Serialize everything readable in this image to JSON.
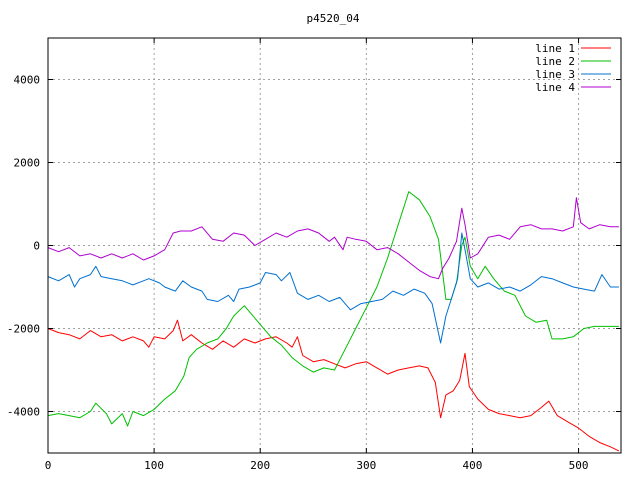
{
  "chart_data": {
    "type": "line",
    "title": "p4520_04",
    "xlim": [
      0,
      540
    ],
    "ylim": [
      -5000,
      5000
    ],
    "xticks": [
      0,
      100,
      200,
      300,
      400,
      500
    ],
    "yticks": [
      -4000,
      -2000,
      0,
      2000,
      4000
    ],
    "grid": true,
    "legend_position": "top-right",
    "series": [
      {
        "name": "line 1",
        "color": "#ff0000",
        "points": [
          [
            0,
            -2000
          ],
          [
            10,
            -2100
          ],
          [
            20,
            -2150
          ],
          [
            30,
            -2250
          ],
          [
            40,
            -2050
          ],
          [
            50,
            -2200
          ],
          [
            60,
            -2150
          ],
          [
            70,
            -2300
          ],
          [
            80,
            -2200
          ],
          [
            90,
            -2300
          ],
          [
            95,
            -2450
          ],
          [
            100,
            -2200
          ],
          [
            110,
            -2250
          ],
          [
            118,
            -2050
          ],
          [
            122,
            -1800
          ],
          [
            127,
            -2300
          ],
          [
            135,
            -2150
          ],
          [
            145,
            -2350
          ],
          [
            155,
            -2500
          ],
          [
            165,
            -2300
          ],
          [
            175,
            -2450
          ],
          [
            185,
            -2250
          ],
          [
            195,
            -2350
          ],
          [
            205,
            -2250
          ],
          [
            215,
            -2200
          ],
          [
            225,
            -2350
          ],
          [
            230,
            -2450
          ],
          [
            235,
            -2200
          ],
          [
            240,
            -2650
          ],
          [
            250,
            -2800
          ],
          [
            260,
            -2750
          ],
          [
            270,
            -2850
          ],
          [
            280,
            -2950
          ],
          [
            290,
            -2850
          ],
          [
            300,
            -2800
          ],
          [
            310,
            -2950
          ],
          [
            320,
            -3100
          ],
          [
            330,
            -3000
          ],
          [
            340,
            -2950
          ],
          [
            350,
            -2900
          ],
          [
            358,
            -2950
          ],
          [
            365,
            -3300
          ],
          [
            370,
            -4150
          ],
          [
            375,
            -3600
          ],
          [
            382,
            -3500
          ],
          [
            388,
            -3250
          ],
          [
            393,
            -2600
          ],
          [
            397,
            -3400
          ],
          [
            405,
            -3700
          ],
          [
            415,
            -3950
          ],
          [
            425,
            -4050
          ],
          [
            435,
            -4100
          ],
          [
            445,
            -4150
          ],
          [
            455,
            -4100
          ],
          [
            465,
            -3900
          ],
          [
            472,
            -3750
          ],
          [
            480,
            -4100
          ],
          [
            490,
            -4250
          ],
          [
            500,
            -4400
          ],
          [
            510,
            -4600
          ],
          [
            520,
            -4750
          ],
          [
            530,
            -4850
          ],
          [
            538,
            -4950
          ]
        ]
      },
      {
        "name": "line 2",
        "color": "#00c000",
        "points": [
          [
            0,
            -4100
          ],
          [
            10,
            -4050
          ],
          [
            20,
            -4100
          ],
          [
            30,
            -4150
          ],
          [
            40,
            -4000
          ],
          [
            45,
            -3800
          ],
          [
            55,
            -4050
          ],
          [
            60,
            -4300
          ],
          [
            70,
            -4050
          ],
          [
            75,
            -4350
          ],
          [
            80,
            -4000
          ],
          [
            90,
            -4100
          ],
          [
            100,
            -3950
          ],
          [
            110,
            -3700
          ],
          [
            120,
            -3500
          ],
          [
            128,
            -3150
          ],
          [
            133,
            -2700
          ],
          [
            140,
            -2500
          ],
          [
            150,
            -2350
          ],
          [
            160,
            -2250
          ],
          [
            168,
            -2000
          ],
          [
            175,
            -1700
          ],
          [
            185,
            -1450
          ],
          [
            190,
            -1600
          ],
          [
            200,
            -1900
          ],
          [
            210,
            -2200
          ],
          [
            220,
            -2400
          ],
          [
            230,
            -2700
          ],
          [
            240,
            -2900
          ],
          [
            250,
            -3050
          ],
          [
            260,
            -2950
          ],
          [
            270,
            -3000
          ],
          [
            280,
            -2500
          ],
          [
            290,
            -2000
          ],
          [
            300,
            -1500
          ],
          [
            310,
            -1000
          ],
          [
            320,
            -300
          ],
          [
            330,
            500
          ],
          [
            340,
            1300
          ],
          [
            350,
            1100
          ],
          [
            360,
            700
          ],
          [
            368,
            150
          ],
          [
            375,
            -1300
          ],
          [
            380,
            -1300
          ],
          [
            385,
            -900
          ],
          [
            390,
            0
          ],
          [
            393,
            200
          ],
          [
            398,
            -500
          ],
          [
            405,
            -800
          ],
          [
            412,
            -500
          ],
          [
            420,
            -800
          ],
          [
            430,
            -1100
          ],
          [
            440,
            -1200
          ],
          [
            450,
            -1700
          ],
          [
            460,
            -1850
          ],
          [
            470,
            -1800
          ],
          [
            475,
            -2250
          ],
          [
            485,
            -2250
          ],
          [
            495,
            -2200
          ],
          [
            505,
            -2000
          ],
          [
            515,
            -1950
          ],
          [
            525,
            -1950
          ],
          [
            538,
            -1950
          ]
        ]
      },
      {
        "name": "line 3",
        "color": "#0070d0",
        "points": [
          [
            0,
            -750
          ],
          [
            10,
            -850
          ],
          [
            20,
            -700
          ],
          [
            25,
            -1000
          ],
          [
            30,
            -800
          ],
          [
            40,
            -700
          ],
          [
            45,
            -500
          ],
          [
            50,
            -750
          ],
          [
            60,
            -800
          ],
          [
            70,
            -850
          ],
          [
            80,
            -950
          ],
          [
            90,
            -850
          ],
          [
            95,
            -800
          ],
          [
            105,
            -900
          ],
          [
            110,
            -1000
          ],
          [
            120,
            -1100
          ],
          [
            127,
            -850
          ],
          [
            135,
            -1000
          ],
          [
            145,
            -1100
          ],
          [
            150,
            -1300
          ],
          [
            160,
            -1350
          ],
          [
            170,
            -1200
          ],
          [
            175,
            -1350
          ],
          [
            180,
            -1050
          ],
          [
            190,
            -1000
          ],
          [
            200,
            -900
          ],
          [
            205,
            -650
          ],
          [
            215,
            -700
          ],
          [
            220,
            -850
          ],
          [
            228,
            -650
          ],
          [
            235,
            -1150
          ],
          [
            245,
            -1300
          ],
          [
            255,
            -1200
          ],
          [
            265,
            -1350
          ],
          [
            275,
            -1250
          ],
          [
            285,
            -1550
          ],
          [
            295,
            -1400
          ],
          [
            305,
            -1350
          ],
          [
            315,
            -1300
          ],
          [
            325,
            -1100
          ],
          [
            335,
            -1200
          ],
          [
            345,
            -1050
          ],
          [
            355,
            -1150
          ],
          [
            362,
            -1400
          ],
          [
            370,
            -2350
          ],
          [
            375,
            -1700
          ],
          [
            380,
            -1300
          ],
          [
            386,
            -800
          ],
          [
            390,
            300
          ],
          [
            393,
            -100
          ],
          [
            398,
            -800
          ],
          [
            405,
            -1000
          ],
          [
            415,
            -900
          ],
          [
            425,
            -1050
          ],
          [
            435,
            -1000
          ],
          [
            445,
            -1100
          ],
          [
            455,
            -950
          ],
          [
            465,
            -750
          ],
          [
            475,
            -800
          ],
          [
            485,
            -900
          ],
          [
            495,
            -1000
          ],
          [
            505,
            -1050
          ],
          [
            515,
            -1100
          ],
          [
            522,
            -700
          ],
          [
            530,
            -1000
          ],
          [
            538,
            -1000
          ]
        ]
      },
      {
        "name": "line 4",
        "color": "#b000d0",
        "points": [
          [
            0,
            -50
          ],
          [
            10,
            -150
          ],
          [
            20,
            -50
          ],
          [
            30,
            -250
          ],
          [
            40,
            -200
          ],
          [
            50,
            -300
          ],
          [
            60,
            -200
          ],
          [
            70,
            -300
          ],
          [
            80,
            -200
          ],
          [
            90,
            -350
          ],
          [
            100,
            -250
          ],
          [
            110,
            -100
          ],
          [
            118,
            300
          ],
          [
            125,
            350
          ],
          [
            135,
            350
          ],
          [
            145,
            450
          ],
          [
            155,
            150
          ],
          [
            165,
            100
          ],
          [
            175,
            300
          ],
          [
            185,
            250
          ],
          [
            195,
            0
          ],
          [
            205,
            150
          ],
          [
            215,
            300
          ],
          [
            225,
            200
          ],
          [
            235,
            350
          ],
          [
            245,
            400
          ],
          [
            255,
            300
          ],
          [
            260,
            200
          ],
          [
            265,
            100
          ],
          [
            270,
            200
          ],
          [
            278,
            -100
          ],
          [
            282,
            200
          ],
          [
            290,
            150
          ],
          [
            300,
            100
          ],
          [
            310,
            -100
          ],
          [
            320,
            -50
          ],
          [
            330,
            -200
          ],
          [
            340,
            -400
          ],
          [
            350,
            -600
          ],
          [
            360,
            -750
          ],
          [
            368,
            -800
          ],
          [
            372,
            -550
          ],
          [
            378,
            -300
          ],
          [
            385,
            100
          ],
          [
            390,
            900
          ],
          [
            393,
            500
          ],
          [
            398,
            -300
          ],
          [
            405,
            -200
          ],
          [
            415,
            200
          ],
          [
            425,
            250
          ],
          [
            435,
            150
          ],
          [
            445,
            450
          ],
          [
            455,
            500
          ],
          [
            465,
            400
          ],
          [
            475,
            400
          ],
          [
            485,
            350
          ],
          [
            495,
            450
          ],
          [
            498,
            1150
          ],
          [
            502,
            550
          ],
          [
            510,
            400
          ],
          [
            520,
            500
          ],
          [
            530,
            450
          ],
          [
            538,
            450
          ]
        ]
      }
    ]
  }
}
